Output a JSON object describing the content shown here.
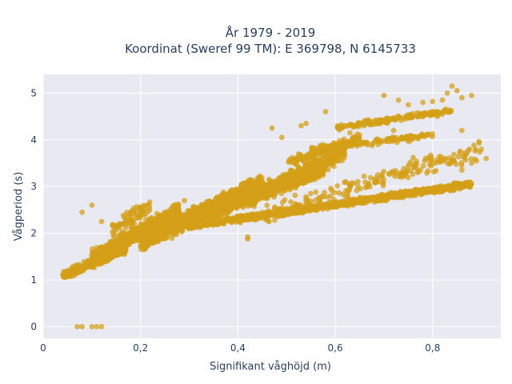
{
  "chart_data": {
    "type": "scatter",
    "title": [
      "År 1979 - 2019",
      "Koordinat (Sweref 99 TM): E 369798, N 6145733"
    ],
    "xlabel": "Signifikant våghöjd (m)",
    "ylabel": "Vågperiod (s)",
    "xlim": [
      0,
      0.94
    ],
    "ylim": [
      -0.25,
      5.4
    ],
    "xticks": [
      0,
      0.2,
      0.4,
      0.6,
      0.8
    ],
    "xtick_labels": [
      "0",
      "0,2",
      "0,4",
      "0,6",
      "0,8"
    ],
    "yticks": [
      0,
      1,
      2,
      3,
      4,
      5
    ],
    "ytick_labels": [
      "0",
      "1",
      "2",
      "3",
      "4",
      "5"
    ],
    "grid": true,
    "background": "#e9e9f1",
    "marker_color": "#d4a017",
    "series": [
      {
        "clusters": [
          {
            "x": [
              0.04,
              0.17
            ],
            "y": [
              1.1,
              1.65
            ],
            "n": 380
          },
          {
            "x": [
              0.1,
              0.28
            ],
            "y": [
              1.45,
              2.5
            ],
            "n": 700
          },
          {
            "x": [
              0.2,
              0.45
            ],
            "y": [
              1.8,
              3.05
            ],
            "n": 1100
          },
          {
            "x": [
              0.3,
              0.58
            ],
            "y": [
              2.3,
              3.4
            ],
            "n": 1000
          },
          {
            "x": [
              0.42,
              0.62
            ],
            "y": [
              2.7,
              3.75
            ],
            "n": 500
          },
          {
            "x": [
              0.5,
              0.65
            ],
            "y": [
              3.5,
              4.05
            ],
            "n": 150
          },
          {
            "x": [
              0.45,
              0.9
            ],
            "y": [
              2.4,
              3.8
            ],
            "n": 200
          }
        ],
        "bands": [
          {
            "x": [
              0.3,
              0.88
            ],
            "y0": 2.15,
            "slope": 1.55,
            "spread": 0.09,
            "n": 1200
          },
          {
            "x": [
              0.6,
              0.84
            ],
            "y0": 4.25,
            "slope": 1.6,
            "spread": 0.08,
            "n": 160
          },
          {
            "x": [
              0.55,
              0.8
            ],
            "y0": 3.8,
            "slope": 1.2,
            "spread": 0.09,
            "n": 120
          },
          {
            "x": [
              0.14,
              0.22
            ],
            "y0": 2.0,
            "slope": 7.0,
            "spread": 0.3,
            "n": 80
          }
        ],
        "points": [
          [
            0.07,
            0.0
          ],
          [
            0.08,
            0.0
          ],
          [
            0.1,
            0.0
          ],
          [
            0.11,
            0.0
          ],
          [
            0.12,
            0.0
          ],
          [
            0.08,
            2.45
          ],
          [
            0.1,
            2.6
          ],
          [
            0.12,
            2.25
          ],
          [
            0.17,
            2.3
          ],
          [
            0.25,
            2.25
          ],
          [
            0.29,
            2.7
          ],
          [
            0.42,
            1.92
          ],
          [
            0.42,
            1.88
          ],
          [
            0.53,
            4.3
          ],
          [
            0.54,
            4.35
          ],
          [
            0.47,
            4.25
          ],
          [
            0.49,
            4.05
          ],
          [
            0.58,
            4.6
          ],
          [
            0.63,
            4.15
          ],
          [
            0.65,
            4.1
          ],
          [
            0.72,
            4.2
          ],
          [
            0.7,
            4.95
          ],
          [
            0.73,
            4.85
          ],
          [
            0.75,
            4.75
          ],
          [
            0.78,
            4.8
          ],
          [
            0.8,
            4.82
          ],
          [
            0.82,
            4.85
          ],
          [
            0.83,
            5.0
          ],
          [
            0.84,
            5.15
          ],
          [
            0.85,
            5.05
          ],
          [
            0.86,
            4.9
          ],
          [
            0.88,
            4.95
          ],
          [
            0.86,
            3.35
          ],
          [
            0.88,
            3.5
          ],
          [
            0.89,
            3.55
          ],
          [
            0.9,
            3.8
          ],
          [
            0.91,
            3.6
          ],
          [
            0.86,
            4.2
          ],
          [
            0.87,
            3.7
          ],
          [
            0.81,
            4.5
          ],
          [
            0.82,
            4.55
          ]
        ]
      }
    ]
  }
}
